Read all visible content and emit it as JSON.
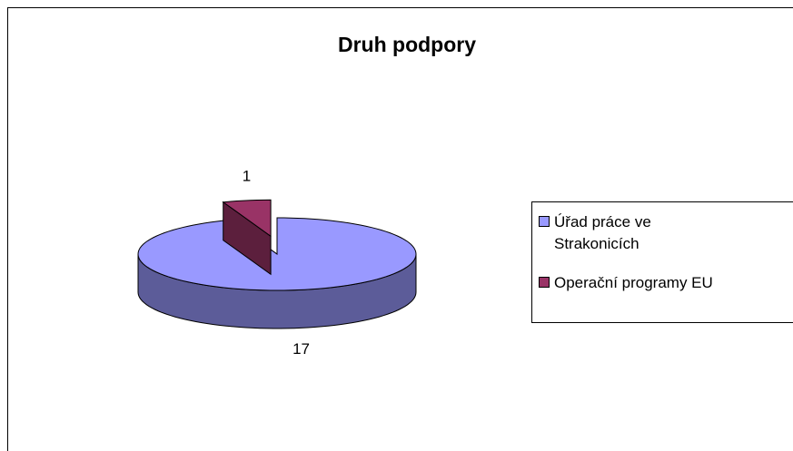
{
  "chart_data": {
    "type": "pie3d",
    "title": "Druh podpory",
    "categories": [
      "Úřad práce ve Strakonicích",
      "Operační programy EU"
    ],
    "values": [
      17,
      1
    ],
    "colors": [
      "#9999ff",
      "#993366"
    ],
    "side_colors": [
      "#5c5c99",
      "#5c1f3d"
    ],
    "legend": "right"
  }
}
